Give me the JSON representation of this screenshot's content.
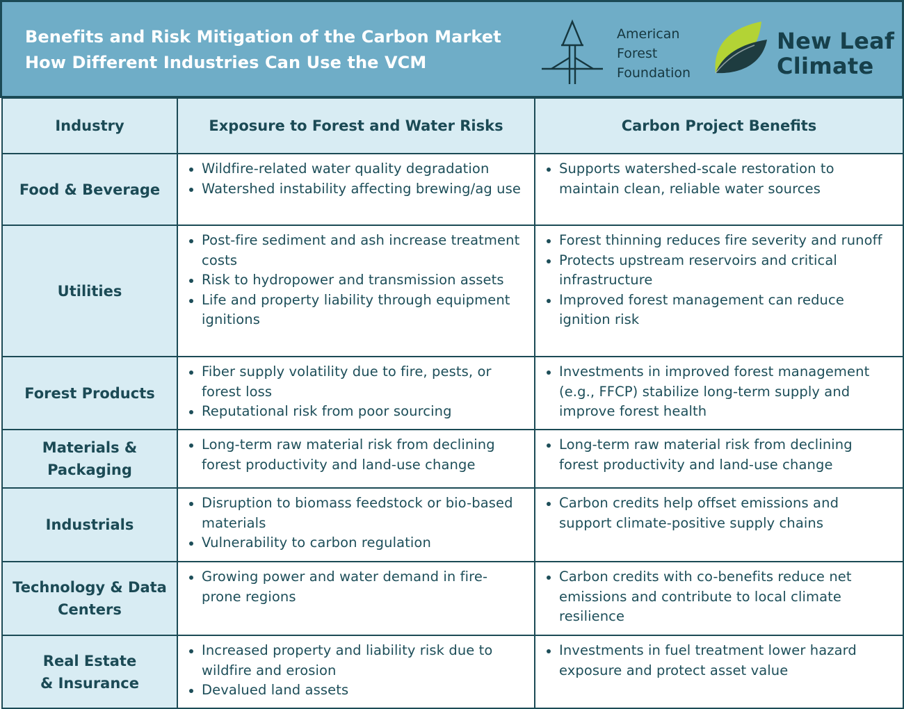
{
  "header": {
    "title_line_1": "Benefits and Risk Mitigation of the Carbon Market",
    "title_line_2": "How Different Industries Can Use the VCM",
    "aff_logo_name": "american-forest-foundation-logo",
    "aff_name_lines": [
      "American",
      "Forest",
      "Foundation"
    ],
    "nlc_logo_name": "new-leaf-climate-logo",
    "nlc_name_lines": [
      "New Leaf",
      "Climate"
    ]
  },
  "colors": {
    "header_bg": "#6fadc7",
    "label_bg": "#d8ecf3",
    "border": "#1b4a55",
    "text": "#1b4a55",
    "leaf_light": "#b3d335",
    "leaf_dark": "#1e3c40"
  },
  "table": {
    "headers": [
      "Industry",
      "Exposure to Forest and Water Risks",
      "Carbon Project Benefits"
    ],
    "rows": [
      {
        "industry": "Food & Beverage",
        "risks": [
          "Wildfire-related water quality degradation",
          "Watershed instability affecting brewing/ag use"
        ],
        "benefits": [
          "Supports watershed-scale restoration to maintain clean, reliable water sources"
        ]
      },
      {
        "industry": "Utilities",
        "risks": [
          "Post-fire sediment and ash increase treatment costs",
          "Risk to hydropower and transmission assets",
          "Life and property liability through equipment ignitions"
        ],
        "benefits": [
          "Forest thinning reduces fire severity and runoff",
          "Protects upstream reservoirs and critical infrastructure",
          "Improved forest management can reduce ignition risk"
        ]
      },
      {
        "industry": "Forest Products",
        "risks": [
          "Fiber supply volatility due to fire, pests, or forest loss",
          "Reputational risk from poor sourcing"
        ],
        "benefits": [
          " Investments in improved forest management (e.g., FFCP) stabilize long-term supply and improve forest health"
        ]
      },
      {
        "industry": "Materials & Packaging",
        "risks": [
          "Long-term raw material risk from declining forest productivity and land-use change"
        ],
        "benefits": [
          "Long-term raw material risk from declining forest productivity and land-use change"
        ]
      },
      {
        "industry": "Industrials",
        "risks": [
          "Disruption to biomass feedstock or bio-based materials",
          "Vulnerability to carbon regulation"
        ],
        "benefits": [
          " Carbon credits help offset emissions and support climate-positive supply chains"
        ]
      },
      {
        "industry": "Technology & Data Centers",
        "risks": [
          " Growing power and water demand in fire-prone regions"
        ],
        "benefits": [
          "Carbon credits with co-benefits reduce net emissions and contribute to local climate resilience"
        ]
      },
      {
        "industry": "Real Estate & Insurance",
        "risks": [
          "Increased property and liability risk due to wildfire and erosion",
          "Devalued land assets"
        ],
        "benefits": [
          "Investments in fuel treatment lower hazard exposure and protect asset value"
        ]
      }
    ]
  }
}
